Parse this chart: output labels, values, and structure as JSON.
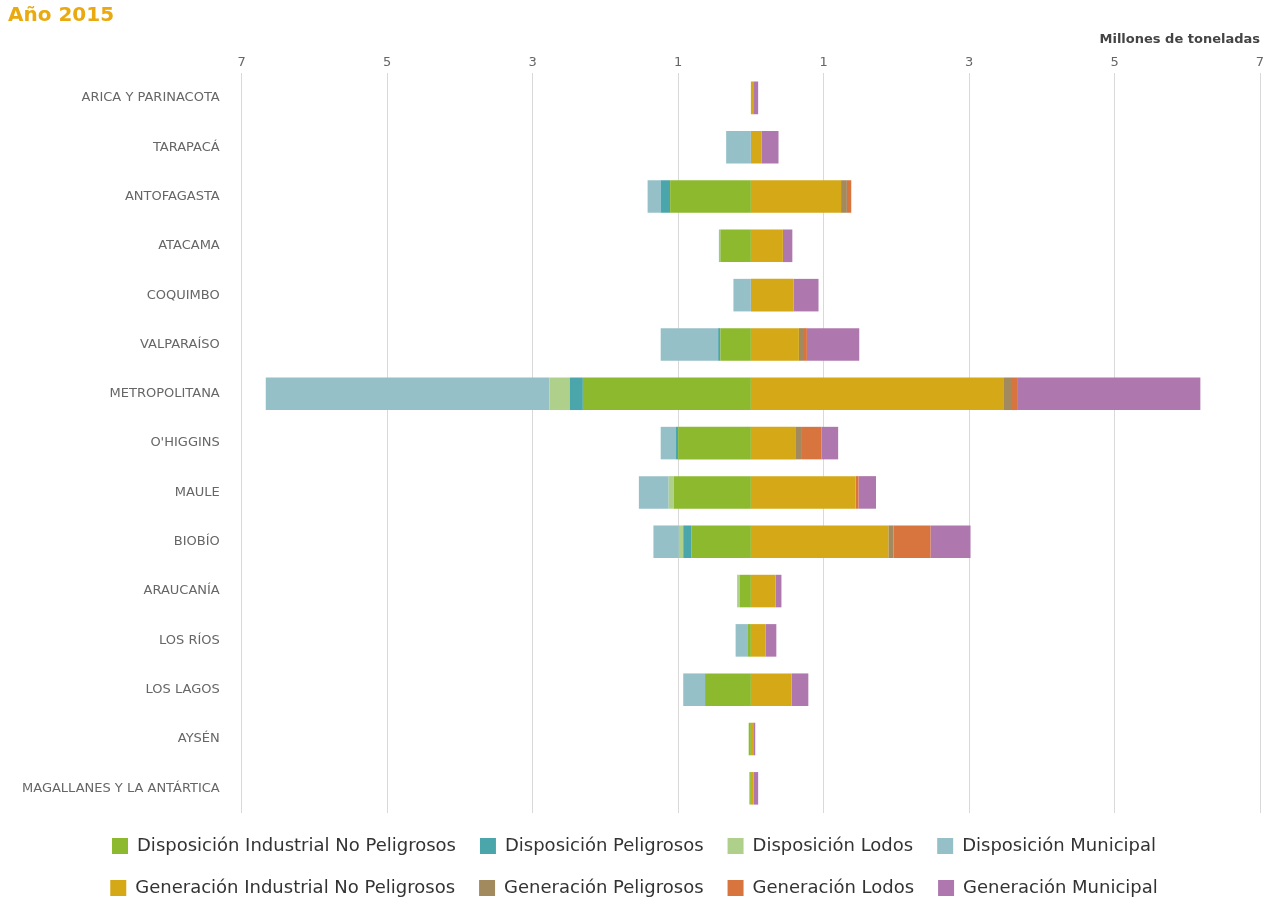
{
  "chart_data": {
    "type": "bar",
    "orientation": "horizontal",
    "stacked": true,
    "title": "Año 2015",
    "xlabel": "Millones de toneladas",
    "categories": [
      "ARICA Y PARINACOTA",
      "TARAPACÁ",
      "ANTOFAGASTA",
      "ATACAMA",
      "COQUIMBO",
      "VALPARAÍSO",
      "METROPOLITANA",
      "O'HIGGINS",
      "MAULE",
      "BIOBÍO",
      "ARAUCANÍA",
      "LOS RÍOS",
      "LOS LAGOS",
      "AYSÉN",
      "MAGALLANES Y LA ANTÁRTICA"
    ],
    "series": [
      {
        "name": "Disposición Industrial No Peligrosos",
        "color": "#8db92e",
        "values": [
          null,
          null,
          -1.11,
          -0.42,
          null,
          -0.42,
          -2.31,
          -1.0,
          -1.06,
          -0.82,
          -0.15,
          -0.04,
          -0.63,
          -0.03,
          -0.02
        ]
      },
      {
        "name": "Disposición Peligrosos",
        "color": "#4ba6ac",
        "values": [
          null,
          null,
          -0.13,
          null,
          null,
          -0.03,
          -0.18,
          -0.03,
          null,
          -0.11,
          null,
          null,
          null,
          null,
          null
        ]
      },
      {
        "name": "Disposición Lodos",
        "color": "#aed08a",
        "values": [
          null,
          null,
          null,
          null,
          null,
          null,
          -0.28,
          null,
          -0.07,
          -0.06,
          -0.03,
          null,
          null,
          null,
          null
        ]
      },
      {
        "name": "Disposición Municipal",
        "color": "#96c0c8",
        "values": [
          null,
          -0.34,
          -0.18,
          -0.02,
          -0.24,
          -0.79,
          -3.9,
          -0.21,
          -0.41,
          -0.35,
          -0.01,
          -0.17,
          -0.3,
          null,
          null
        ]
      },
      {
        "name": "Generación Industrial No Peligrosos",
        "color": "#d4a817",
        "values": [
          0.03,
          0.15,
          1.24,
          0.44,
          0.59,
          0.66,
          3.48,
          0.62,
          1.44,
          1.89,
          0.34,
          0.2,
          0.56,
          0.03,
          0.04
        ]
      },
      {
        "name": "Generación Peligrosos",
        "color": "#a3895e",
        "values": [
          0.01,
          null,
          0.08,
          null,
          null,
          0.07,
          0.11,
          0.07,
          null,
          0.07,
          null,
          null,
          null,
          null,
          null
        ]
      },
      {
        "name": "Generación Lodos",
        "color": "#d8743d",
        "values": [
          null,
          null,
          0.06,
          null,
          null,
          0.04,
          0.07,
          0.28,
          0.04,
          0.51,
          null,
          null,
          null,
          0.01,
          null
        ]
      },
      {
        "name": "Generación Municipal",
        "color": "#ae78ae",
        "values": [
          0.06,
          0.23,
          null,
          0.13,
          0.34,
          0.72,
          2.52,
          0.23,
          0.24,
          0.55,
          0.08,
          0.15,
          0.23,
          0.02,
          0.06
        ]
      }
    ],
    "xlim": [
      -7,
      7
    ],
    "xticks": [
      {
        "value": -7,
        "label": "7"
      },
      {
        "value": -5,
        "label": "5"
      },
      {
        "value": -3,
        "label": "3"
      },
      {
        "value": -1,
        "label": "1"
      },
      1,
      3,
      5,
      7
    ],
    "grid": "x",
    "legend": "bottom"
  }
}
